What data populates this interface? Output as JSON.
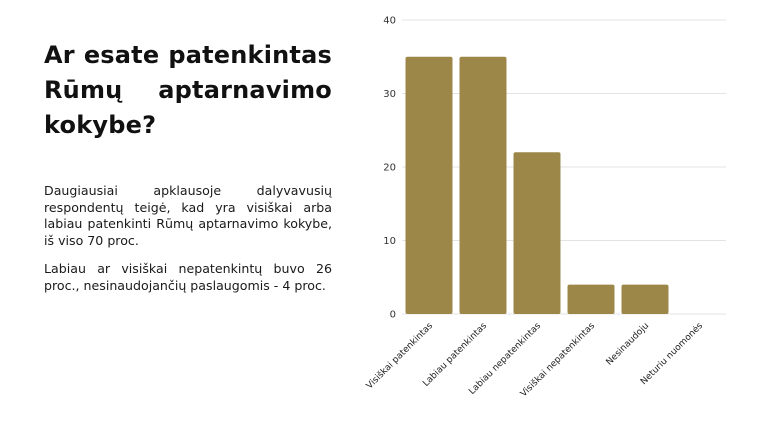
{
  "slide": {
    "title": "Ar esate patenkintas Rūmų aptarnavimo kokybe?",
    "paragraph1": "Daugiausiai apklausoje dalyvavusių respondentų teigė, kad yra visiškai arba labiau patenkinti Rūmų aptarnavimo kokybe, iš viso 70 proc.",
    "paragraph2": "Labiau ar visiškai nepatenkintų buvo 26 proc., nesinaudojančių paslaugomis - 4 proc."
  },
  "chart_data": {
    "type": "bar",
    "categories": [
      "Visiškai patenkintas",
      "Labiau patenkintas",
      "Labiau nepatenkintas",
      "Visiškai nepatenkintas",
      "Nesinaudoju",
      "Neturiu nuomonės"
    ],
    "values": [
      35,
      35,
      22,
      4,
      4,
      0
    ],
    "ylim": [
      0,
      40
    ],
    "yticks": [
      0,
      10,
      20,
      30,
      40
    ],
    "grid": true,
    "bar_color": "#9c8748"
  }
}
